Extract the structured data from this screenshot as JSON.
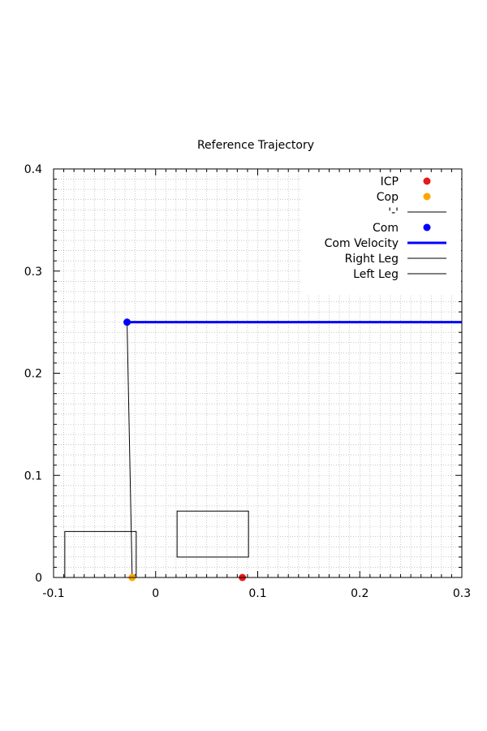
{
  "chart_data": {
    "type": "scatter",
    "title": "Reference Trajectory",
    "xlim": [
      -0.1,
      0.3
    ],
    "ylim": [
      0,
      0.4
    ],
    "x_ticks": [
      -0.1,
      0,
      0.1,
      0.2,
      0.3
    ],
    "y_ticks": [
      0,
      0.1,
      0.2,
      0.3,
      0.4
    ],
    "x_tick_labels": [
      "-0.1",
      "0",
      "0.1",
      "0.2",
      "0.3"
    ],
    "y_tick_labels": [
      "0",
      "0.1",
      "0.2",
      "0.3",
      "0.4"
    ],
    "minor_step": 0.01,
    "grid": true,
    "legend_position": "top-right",
    "series": [
      {
        "name": "ICP",
        "kind": "points",
        "color": "#e41a1c",
        "points": [
          [
            0.085,
            0.0
          ]
        ]
      },
      {
        "name": "Cop",
        "kind": "points",
        "color": "#ffa500",
        "points": [
          [
            -0.023,
            0.0
          ]
        ]
      },
      {
        "name": "'-'",
        "kind": "line",
        "color": "#000000",
        "points": [
          [
            -0.028,
            0.25
          ],
          [
            -0.023,
            0.0
          ]
        ]
      },
      {
        "name": "Com",
        "kind": "points",
        "color": "#0000ff",
        "points": [
          [
            -0.028,
            0.25
          ]
        ]
      },
      {
        "name": "Com Velocity",
        "kind": "line",
        "color": "#0000ff",
        "thick": true,
        "points": [
          [
            -0.028,
            0.25
          ],
          [
            0.3,
            0.25
          ]
        ]
      },
      {
        "name": "Right Leg",
        "kind": "polygon",
        "color": "#000000",
        "points": [
          [
            0.021,
            0.02
          ],
          [
            0.091,
            0.02
          ],
          [
            0.091,
            0.065
          ],
          [
            0.021,
            0.065
          ]
        ]
      },
      {
        "name": "Left Leg",
        "kind": "polygon",
        "color": "#000000",
        "points": [
          [
            -0.089,
            0.0
          ],
          [
            -0.089,
            0.045
          ],
          [
            -0.019,
            0.045
          ],
          [
            -0.019,
            0.0
          ]
        ]
      }
    ]
  }
}
